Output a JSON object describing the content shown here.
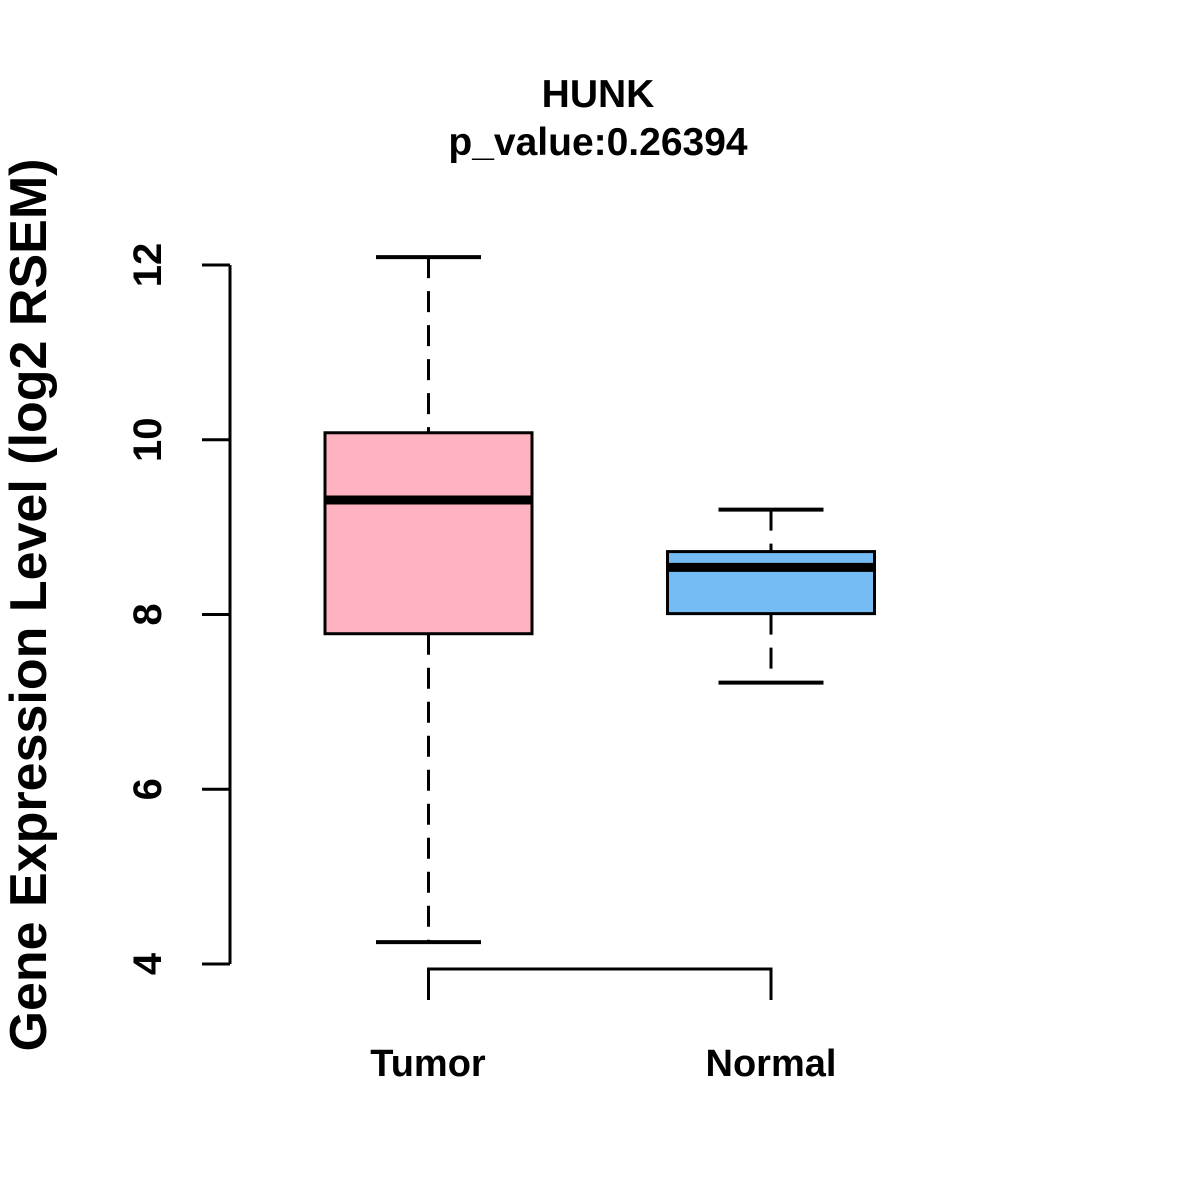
{
  "chart_data": {
    "type": "boxplot",
    "title": "HUNK",
    "subtitle": "p_value:0.26394",
    "ylabel": "Gene Expression Level (log2 RSEM)",
    "categories": [
      "Tumor",
      "Normal"
    ],
    "yticks": [
      4,
      6,
      8,
      10,
      12
    ],
    "ylim": [
      3.6,
      12.3
    ],
    "grid": false,
    "legend": "none",
    "series": [
      {
        "name": "Tumor",
        "color": "#FFB3C1",
        "lower_whisker": 4.25,
        "q1": 7.78,
        "median": 9.31,
        "q3": 10.08,
        "upper_whisker": 12.09,
        "outliers": []
      },
      {
        "name": "Normal",
        "color": "#75BCF4",
        "lower_whisker": 7.22,
        "q1": 8.01,
        "median": 8.54,
        "q3": 8.72,
        "upper_whisker": 9.2,
        "outliers": []
      }
    ],
    "colors": {
      "box_border": "#000000",
      "median_line": "#000000",
      "axis": "#000000",
      "text": "#000000",
      "background": "#FFFFFF"
    }
  }
}
